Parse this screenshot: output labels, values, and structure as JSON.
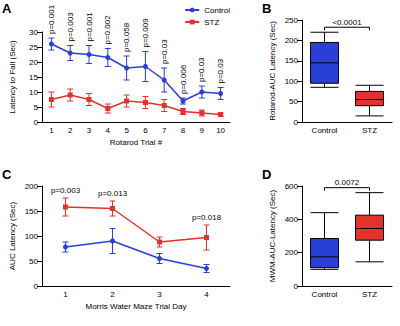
{
  "chart_data": [
    {
      "type": "line",
      "title": "A",
      "x_label": "Rotarod Trial #",
      "y_label": "Latency to Fall (Sec)",
      "categories": [
        "1",
        "2",
        "3",
        "4",
        "5",
        "6",
        "7",
        "8",
        "9",
        "10"
      ],
      "series": [
        {
          "name": "Control",
          "color": "#2a3fd8",
          "marker": "circle",
          "values": [
            26,
            23,
            22.5,
            21.5,
            18,
            18.5,
            14,
            7,
            10,
            9.5
          ],
          "errors": [
            2,
            2.5,
            3,
            3,
            4,
            5,
            4,
            1,
            2,
            2
          ]
        },
        {
          "name": "STZ",
          "color": "#e5312b",
          "marker": "square",
          "values": [
            7.5,
            9,
            7.5,
            4.5,
            7,
            6.5,
            5.5,
            3.5,
            3,
            2.5
          ],
          "errors": [
            2.5,
            2,
            2,
            1.5,
            2,
            2,
            2,
            1,
            1,
            0.5
          ]
        }
      ],
      "annotations": [
        "p=0.001",
        "p=0.003",
        "p=0.001",
        "p=0.002",
        "p=0.058",
        "p=0.009",
        "p=0.03",
        "p=0.006",
        "p=0.03",
        "p=0.03"
      ],
      "ylim": [
        0,
        30
      ],
      "yticks": [
        0,
        5,
        10,
        15,
        20,
        25,
        30
      ],
      "grid": false,
      "legend": "upper right"
    },
    {
      "type": "boxplot",
      "title": "B",
      "y_label": "Rotarod-AUC Latency (Sec)",
      "categories": [
        "Control",
        "STZ"
      ],
      "values": [
        [
          85,
          95,
          145,
          195,
          220
        ],
        [
          15,
          40,
          55,
          75,
          90
        ]
      ],
      "colors": [
        "#2a3fd8",
        "#e5312b"
      ],
      "annotations": [
        "<0.0001"
      ],
      "ylim": [
        0,
        250
      ],
      "yticks": [
        0,
        50,
        100,
        150,
        200,
        250
      ],
      "grid": false
    },
    {
      "type": "line",
      "title": "C",
      "x_label": "Morris Water Maze Trial Day",
      "y_label": "AUC Latency (Sec)",
      "categories": [
        "1",
        "2",
        "3",
        "4"
      ],
      "series": [
        {
          "name": "Control",
          "color": "#2a3fd8",
          "marker": "circle",
          "values": [
            78,
            90,
            55,
            35
          ],
          "errors": [
            10,
            25,
            10,
            8
          ]
        },
        {
          "name": "STZ",
          "color": "#e5312b",
          "marker": "square",
          "values": [
            158,
            155,
            88,
            97
          ],
          "errors": [
            18,
            15,
            10,
            25
          ]
        }
      ],
      "annotations": [
        "p=0.003",
        "p=0.013",
        null,
        "p=0.018"
      ],
      "ylim": [
        0,
        200
      ],
      "yticks": [
        0,
        50,
        100,
        150,
        200
      ],
      "grid": false
    },
    {
      "type": "boxplot",
      "title": "D",
      "y_label": "MWM-AUC-Latency (Sec)",
      "categories": [
        "Control",
        "STZ"
      ],
      "values": [
        [
          100,
          110,
          175,
          285,
          440
        ],
        [
          145,
          275,
          345,
          425,
          560
        ]
      ],
      "colors": [
        "#2a3fd8",
        "#e5312b"
      ],
      "annotations": [
        "0.0072"
      ],
      "ylim": [
        0,
        600
      ],
      "yticks": [
        0,
        200,
        400,
        600
      ],
      "grid": false
    }
  ]
}
